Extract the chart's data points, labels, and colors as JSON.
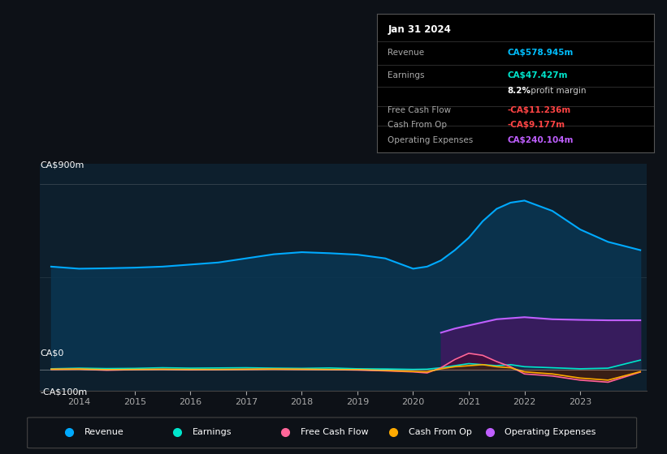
{
  "bg_color": "#0d1117",
  "plot_bg_color": "#0d1f2d",
  "title": "Jan 31 2024",
  "tooltip": {
    "Revenue": {
      "value": "CA$578.945m",
      "color": "#00bfff"
    },
    "Earnings": {
      "value": "CA$47.427m",
      "color": "#00e5cc"
    },
    "profit_margin": "8.2% profit margin",
    "Free Cash Flow": {
      "value": "-CA$11.236m",
      "color": "#ff4444"
    },
    "Cash From Op": {
      "value": "-CA$9.177m",
      "color": "#ff4444"
    },
    "Operating Expenses": {
      "value": "CA$240.104m",
      "color": "#bf5fff"
    }
  },
  "ylabel_top": "CA$900m",
  "ylabel_zero": "CA$0",
  "ylabel_bottom": "-CA$100m",
  "ylim": [
    -100,
    1000
  ],
  "years": [
    2013.5,
    2014,
    2014.5,
    2015,
    2015.5,
    2016,
    2016.5,
    2017,
    2017.5,
    2018,
    2018.5,
    2019,
    2019.5,
    2020,
    2020.25,
    2020.5,
    2020.75,
    2021,
    2021.25,
    2021.5,
    2021.75,
    2022,
    2022.5,
    2023,
    2023.5,
    2024.08
  ],
  "revenue": [
    500,
    490,
    492,
    495,
    500,
    510,
    520,
    540,
    560,
    570,
    565,
    558,
    540,
    490,
    500,
    530,
    580,
    640,
    720,
    780,
    810,
    820,
    770,
    680,
    620,
    580
  ],
  "earnings": [
    5,
    8,
    6,
    7,
    10,
    8,
    9,
    10,
    8,
    7,
    9,
    5,
    4,
    2,
    3,
    10,
    20,
    30,
    25,
    20,
    25,
    15,
    10,
    5,
    8,
    47
  ],
  "free_cash_flow": [
    2,
    3,
    -2,
    1,
    2,
    0,
    1,
    2,
    3,
    2,
    1,
    -1,
    -5,
    -10,
    -15,
    10,
    50,
    80,
    70,
    40,
    15,
    -20,
    -30,
    -50,
    -60,
    -11
  ],
  "cash_from_op": [
    3,
    4,
    1,
    2,
    3,
    2,
    2,
    3,
    4,
    3,
    2,
    1,
    -3,
    -8,
    -10,
    5,
    15,
    20,
    25,
    15,
    10,
    -10,
    -20,
    -40,
    -50,
    -9
  ],
  "op_expenses": [
    0,
    0,
    0,
    0,
    0,
    0,
    0,
    0,
    0,
    0,
    0,
    0,
    0,
    0,
    0,
    180,
    200,
    215,
    230,
    245,
    250,
    255,
    245,
    242,
    240,
    240
  ],
  "revenue_color": "#00aaff",
  "revenue_fill": "#0a3550",
  "earnings_color": "#00e5cc",
  "earnings_fill": "#003f3f",
  "free_cash_flow_color": "#ff6699",
  "free_cash_flow_fill": "#4d0020",
  "cash_from_op_color": "#ffaa00",
  "cash_from_op_fill": "#4d3000",
  "op_expenses_color": "#bf5fff",
  "op_expenses_fill": "#3d1a5f",
  "legend_items": [
    {
      "label": "Revenue",
      "color": "#00aaff"
    },
    {
      "label": "Earnings",
      "color": "#00e5cc"
    },
    {
      "label": "Free Cash Flow",
      "color": "#ff6699"
    },
    {
      "label": "Cash From Op",
      "color": "#ffaa00"
    },
    {
      "label": "Operating Expenses",
      "color": "#bf5fff"
    }
  ]
}
